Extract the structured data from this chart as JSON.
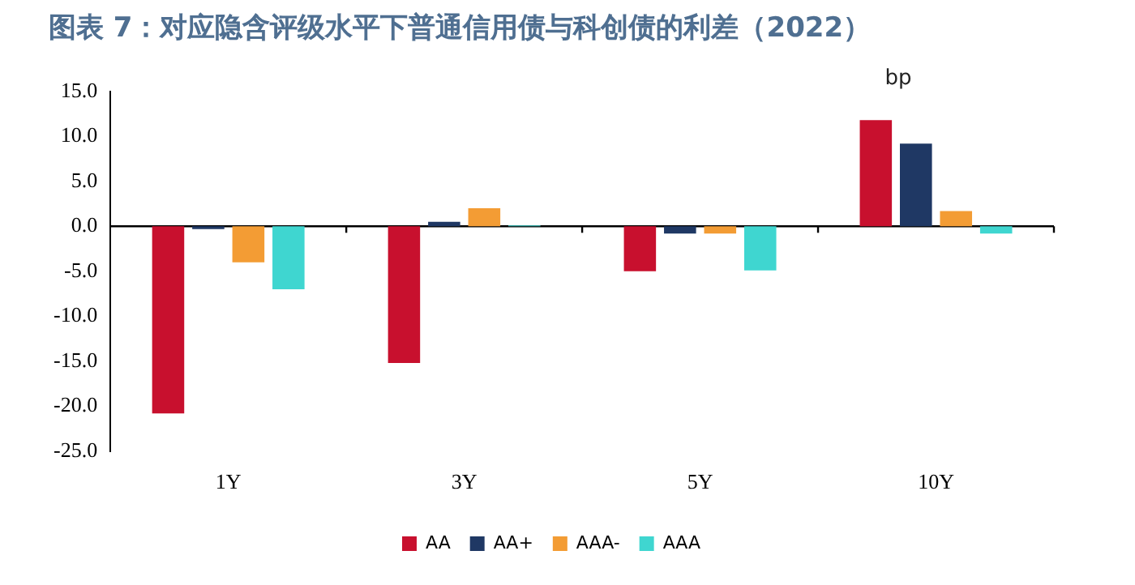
{
  "chart_data": {
    "type": "bar",
    "title": "图表 7：对应隐含评级水平下普通信用债与科创债的利差（2022）",
    "categories": [
      "1Y",
      "3Y",
      "5Y",
      "10Y"
    ],
    "series": [
      {
        "name": "AA",
        "color": "#c8102e",
        "values": [
          -20.8,
          -15.2,
          -5.0,
          11.8
        ]
      },
      {
        "name": "AA+",
        "color": "#1f3864",
        "values": [
          -0.3,
          0.5,
          -0.8,
          9.2
        ]
      },
      {
        "name": "AAA-",
        "color": "#f39c34",
        "values": [
          -4.0,
          2.0,
          -0.8,
          1.7
        ]
      },
      {
        "name": "AAA",
        "color": "#3fd6d0",
        "values": [
          -7.0,
          0.1,
          -4.9,
          -0.8
        ]
      }
    ],
    "ylim": [
      -25,
      15
    ],
    "yticks": [
      {
        "value": -25,
        "label": "-25.0"
      },
      {
        "value": -20,
        "label": "-20.0"
      },
      {
        "value": -15,
        "label": "-15.0"
      },
      {
        "value": -10,
        "label": "-10.0"
      },
      {
        "value": -5,
        "label": "-5.0"
      },
      {
        "value": 0,
        "label": "0.0"
      },
      {
        "value": 5,
        "label": "5.0"
      },
      {
        "value": 10,
        "label": "10.0"
      },
      {
        "value": 15,
        "label": "15.0"
      }
    ],
    "ref_lines": [
      {
        "axis": "y",
        "value": 0
      }
    ],
    "annotations": [
      "bp"
    ],
    "grid": false,
    "legend": "bottom"
  }
}
